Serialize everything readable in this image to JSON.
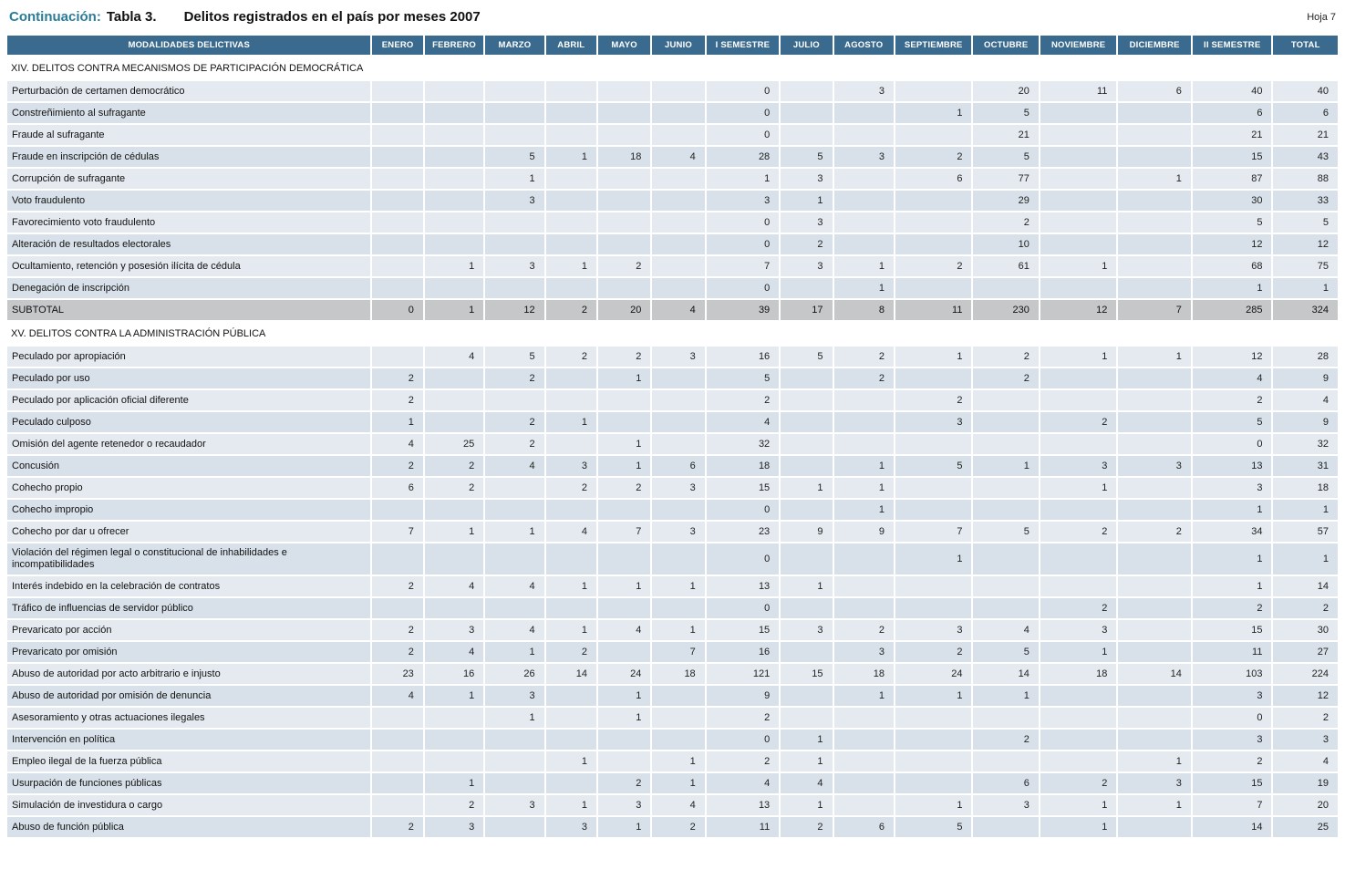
{
  "page": {
    "continuation_label": "Continuación:",
    "table_number": "Tabla 3.",
    "title": "Delitos registrados en el país por meses 2007",
    "sheet": "Hoja 7"
  },
  "colors": {
    "accent": "#2B7C99",
    "header_bg": "#3A6B8E",
    "header_text": "#FFFFFF",
    "row_odd": "#E4EAF0",
    "row_even": "#D8E1E9",
    "subtotal_bg": "#C5C7C9"
  },
  "chart_data": {
    "type": "table",
    "title": "Delitos registrados en el país por meses 2007"
  },
  "table": {
    "columns": [
      "MODALIDADES DELICTIVAS",
      "ENERO",
      "FEBRERO",
      "MARZO",
      "ABRIL",
      "MAYO",
      "JUNIO",
      "I SEMESTRE",
      "JULIO",
      "AGOSTO",
      "SEPTIEMBRE",
      "OCTUBRE",
      "NOVIEMBRE",
      "DICIEMBRE",
      "II SEMESTRE",
      "TOTAL"
    ],
    "sections": [
      {
        "title": "XIV. DELITOS CONTRA MECANISMOS DE PARTICIPACIÓN DEMOCRÁTICA",
        "rows": [
          {
            "label": "Perturbación de certamen democrático",
            "values": [
              "",
              "",
              "",
              "",
              "",
              "",
              "0",
              "",
              "3",
              "",
              "20",
              "11",
              "6",
              "40",
              "40"
            ]
          },
          {
            "label": "Constreñimiento al sufragante",
            "values": [
              "",
              "",
              "",
              "",
              "",
              "",
              "0",
              "",
              "",
              "1",
              "5",
              "",
              "",
              "6",
              "6"
            ]
          },
          {
            "label": "Fraude al sufragante",
            "values": [
              "",
              "",
              "",
              "",
              "",
              "",
              "0",
              "",
              "",
              "",
              "21",
              "",
              "",
              "21",
              "21"
            ]
          },
          {
            "label": "Fraude en inscripción de cédulas",
            "values": [
              "",
              "",
              "5",
              "1",
              "18",
              "4",
              "28",
              "5",
              "3",
              "2",
              "5",
              "",
              "",
              "15",
              "43"
            ]
          },
          {
            "label": "Corrupción de sufragante",
            "values": [
              "",
              "",
              "1",
              "",
              "",
              "",
              "1",
              "3",
              "",
              "6",
              "77",
              "",
              "1",
              "87",
              "88"
            ]
          },
          {
            "label": "Voto fraudulento",
            "values": [
              "",
              "",
              "3",
              "",
              "",
              "",
              "3",
              "1",
              "",
              "",
              "29",
              "",
              "",
              "30",
              "33"
            ]
          },
          {
            "label": "Favorecimiento voto fraudulento",
            "values": [
              "",
              "",
              "",
              "",
              "",
              "",
              "0",
              "3",
              "",
              "",
              "2",
              "",
              "",
              "5",
              "5"
            ]
          },
          {
            "label": "Alteración de resultados electorales",
            "values": [
              "",
              "",
              "",
              "",
              "",
              "",
              "0",
              "2",
              "",
              "",
              "10",
              "",
              "",
              "12",
              "12"
            ]
          },
          {
            "label": "Ocultamiento, retención y posesión ilícita de cédula",
            "values": [
              "",
              "1",
              "3",
              "1",
              "2",
              "",
              "7",
              "3",
              "1",
              "2",
              "61",
              "1",
              "",
              "68",
              "75"
            ]
          },
          {
            "label": "Denegación de inscripción",
            "values": [
              "",
              "",
              "",
              "",
              "",
              "",
              "0",
              "",
              "1",
              "",
              "",
              "",
              "",
              "1",
              "1"
            ]
          },
          {
            "label": "SUBTOTAL",
            "type": "subtotal",
            "values": [
              "0",
              "1",
              "12",
              "2",
              "20",
              "4",
              "39",
              "17",
              "8",
              "11",
              "230",
              "12",
              "7",
              "285",
              "324"
            ]
          }
        ]
      },
      {
        "title": "XV. DELITOS CONTRA LA ADMINISTRACIÓN PÚBLICA",
        "rows": [
          {
            "label": "Peculado por apropiación",
            "values": [
              "",
              "4",
              "5",
              "2",
              "2",
              "3",
              "16",
              "5",
              "2",
              "1",
              "2",
              "1",
              "1",
              "12",
              "28"
            ]
          },
          {
            "label": "Peculado por uso",
            "values": [
              "2",
              "",
              "2",
              "",
              "1",
              "",
              "5",
              "",
              "2",
              "",
              "2",
              "",
              "",
              "4",
              "9"
            ]
          },
          {
            "label": "Peculado por aplicación oficial diferente",
            "values": [
              "2",
              "",
              "",
              "",
              "",
              "",
              "2",
              "",
              "",
              "2",
              "",
              "",
              "",
              "2",
              "4"
            ]
          },
          {
            "label": "Peculado culposo",
            "values": [
              "1",
              "",
              "2",
              "1",
              "",
              "",
              "4",
              "",
              "",
              "3",
              "",
              "2",
              "",
              "5",
              "9"
            ]
          },
          {
            "label": "Omisión del agente retenedor o recaudador",
            "values": [
              "4",
              "25",
              "2",
              "",
              "1",
              "",
              "32",
              "",
              "",
              "",
              "",
              "",
              "",
              "0",
              "32"
            ]
          },
          {
            "label": "Concusión",
            "values": [
              "2",
              "2",
              "4",
              "3",
              "1",
              "6",
              "18",
              "",
              "1",
              "5",
              "1",
              "3",
              "3",
              "13",
              "31"
            ]
          },
          {
            "label": "Cohecho propio",
            "values": [
              "6",
              "2",
              "",
              "2",
              "2",
              "3",
              "15",
              "1",
              "1",
              "",
              "",
              "1",
              "",
              "3",
              "18"
            ]
          },
          {
            "label": "Cohecho impropio",
            "values": [
              "",
              "",
              "",
              "",
              "",
              "",
              "0",
              "",
              "1",
              "",
              "",
              "",
              "",
              "1",
              "1"
            ]
          },
          {
            "label": "Cohecho por dar u ofrecer",
            "values": [
              "7",
              "1",
              "1",
              "4",
              "7",
              "3",
              "23",
              "9",
              "9",
              "7",
              "5",
              "2",
              "2",
              "34",
              "57"
            ]
          },
          {
            "label": "Violación del régimen legal o constitucional de inhabilidades e incompatibilidades",
            "values": [
              "",
              "",
              "",
              "",
              "",
              "",
              "0",
              "",
              "",
              "1",
              "",
              "",
              "",
              "1",
              "1"
            ]
          },
          {
            "label": "Interés indebido en la celebración de contratos",
            "values": [
              "2",
              "4",
              "4",
              "1",
              "1",
              "1",
              "13",
              "1",
              "",
              "",
              "",
              "",
              "",
              "1",
              "14"
            ]
          },
          {
            "label": "Tráfico de influencias de servidor público",
            "values": [
              "",
              "",
              "",
              "",
              "",
              "",
              "0",
              "",
              "",
              "",
              "",
              "2",
              "",
              "2",
              "2"
            ]
          },
          {
            "label": "Prevaricato por acción",
            "values": [
              "2",
              "3",
              "4",
              "1",
              "4",
              "1",
              "15",
              "3",
              "2",
              "3",
              "4",
              "3",
              "",
              "15",
              "30"
            ]
          },
          {
            "label": "Prevaricato por omisión",
            "values": [
              "2",
              "4",
              "1",
              "2",
              "",
              "7",
              "16",
              "",
              "3",
              "2",
              "5",
              "1",
              "",
              "11",
              "27"
            ]
          },
          {
            "label": "Abuso de autoridad por acto arbitrario e injusto",
            "values": [
              "23",
              "16",
              "26",
              "14",
              "24",
              "18",
              "121",
              "15",
              "18",
              "24",
              "14",
              "18",
              "14",
              "103",
              "224"
            ]
          },
          {
            "label": "Abuso de autoridad por omisión de denuncia",
            "values": [
              "4",
              "1",
              "3",
              "",
              "1",
              "",
              "9",
              "",
              "1",
              "1",
              "1",
              "",
              "",
              "3",
              "12"
            ]
          },
          {
            "label": "Asesoramiento y otras actuaciones ilegales",
            "values": [
              "",
              "",
              "1",
              "",
              "1",
              "",
              "2",
              "",
              "",
              "",
              "",
              "",
              "",
              "0",
              "2"
            ]
          },
          {
            "label": "Intervención en política",
            "values": [
              "",
              "",
              "",
              "",
              "",
              "",
              "0",
              "1",
              "",
              "",
              "2",
              "",
              "",
              "3",
              "3"
            ]
          },
          {
            "label": "Empleo ilegal de la fuerza pública",
            "values": [
              "",
              "",
              "",
              "1",
              "",
              "1",
              "2",
              "1",
              "",
              "",
              "",
              "",
              "1",
              "2",
              "4"
            ]
          },
          {
            "label": "Usurpación de funciones públicas",
            "values": [
              "",
              "1",
              "",
              "",
              "2",
              "1",
              "4",
              "4",
              "",
              "",
              "6",
              "2",
              "3",
              "15",
              "19"
            ]
          },
          {
            "label": "Simulación de investidura o cargo",
            "values": [
              "",
              "2",
              "3",
              "1",
              "3",
              "4",
              "13",
              "1",
              "",
              "1",
              "3",
              "1",
              "1",
              "7",
              "20"
            ]
          },
          {
            "label": "Abuso de función pública",
            "values": [
              "2",
              "3",
              "",
              "3",
              "1",
              "2",
              "11",
              "2",
              "6",
              "5",
              "",
              "1",
              "",
              "14",
              "25"
            ]
          }
        ]
      }
    ]
  }
}
